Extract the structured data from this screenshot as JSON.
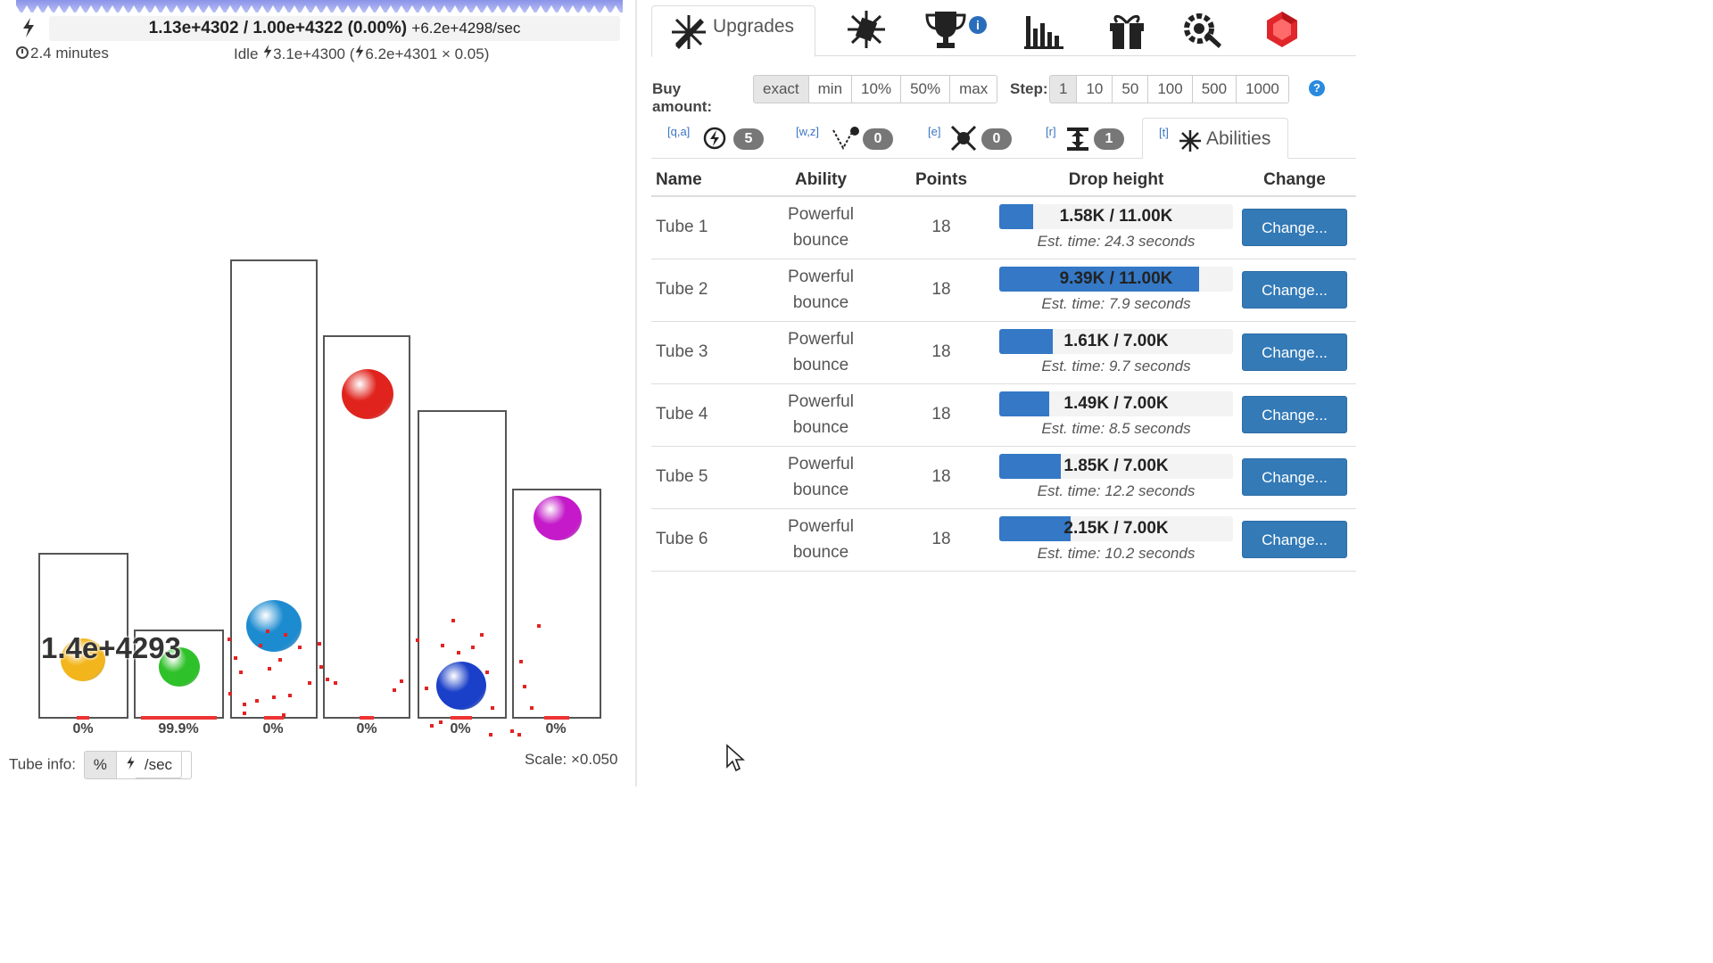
{
  "energy": {
    "value": "1.13e+4302 / 1.00e+4322 (0.00%)",
    "rate": "+6.2e+4298/sec",
    "elapsed": "2.4 minutes",
    "idle_label": "Idle",
    "idle_value": "3.1e+4300",
    "idle_detail": "6.2e+4301 × 0.05"
  },
  "field": {
    "big_number": "1.4e+4293",
    "tubes": [
      {
        "pct": "0%",
        "ball_color": "#f2b51c"
      },
      {
        "pct": "99.9%",
        "ball_color": "#2fc12a",
        "floor_fill": 0.999
      },
      {
        "pct": "0%",
        "ball_color": "#1d8bd0"
      },
      {
        "pct": "0%",
        "ball_color": "#e0231d"
      },
      {
        "pct": "0%",
        "ball_color": "#1a3fc8"
      },
      {
        "pct": "0%",
        "ball_color": "#c41ac9"
      }
    ],
    "tube_info_label": "Tube info:",
    "tube_info_options": [
      "%",
      "/sec"
    ],
    "tube_info_selected": "%",
    "scale": "Scale: ×0.050"
  },
  "tabs": {
    "upgrades": "Upgrades",
    "others": [
      "vortex-icon",
      "trophy-icon",
      "stats-icon",
      "gift-icon",
      "settings-icon",
      "gem-icon"
    ],
    "trophy_badge": "i"
  },
  "buy": {
    "label": "Buy amount:",
    "options": [
      "exact",
      "min",
      "10%",
      "50%",
      "max"
    ],
    "selected": "exact",
    "step_label": "Step:",
    "steps": [
      "1",
      "10",
      "50",
      "100",
      "500",
      "1000"
    ],
    "step_selected": "1",
    "help": "?"
  },
  "subtabs": [
    {
      "key": "[q,a]",
      "icon": "power-icon",
      "count": "5"
    },
    {
      "key": "[w,z]",
      "icon": "bounce-icon",
      "count": "0"
    },
    {
      "key": "[e]",
      "icon": "collide-icon",
      "count": "0"
    },
    {
      "key": "[r]",
      "icon": "height-icon",
      "count": "1"
    },
    {
      "key": "[t]",
      "icon": "abilities-icon",
      "label": "Abilities"
    }
  ],
  "table": {
    "headers": [
      "Name",
      "Ability",
      "Points",
      "Drop height",
      "Change"
    ],
    "rows": [
      {
        "name": "Tube 1",
        "ability": [
          "Powerful",
          "bounce"
        ],
        "points": "18",
        "drop": "1.58K / 11.00K",
        "fill": 0.1436,
        "est": "Est. time: 24.3 seconds",
        "button": "Change..."
      },
      {
        "name": "Tube 2",
        "ability": [
          "Powerful",
          "bounce"
        ],
        "points": "18",
        "drop": "9.39K / 11.00K",
        "fill": 0.8536,
        "est": "Est. time: 7.9 seconds",
        "button": "Change..."
      },
      {
        "name": "Tube 3",
        "ability": [
          "Powerful",
          "bounce"
        ],
        "points": "18",
        "drop": "1.61K / 7.00K",
        "fill": 0.23,
        "est": "Est. time: 9.7 seconds",
        "button": "Change..."
      },
      {
        "name": "Tube 4",
        "ability": [
          "Powerful",
          "bounce"
        ],
        "points": "18",
        "drop": "1.49K / 7.00K",
        "fill": 0.2129,
        "est": "Est. time: 8.5 seconds",
        "button": "Change..."
      },
      {
        "name": "Tube 5",
        "ability": [
          "Powerful",
          "bounce"
        ],
        "points": "18",
        "drop": "1.85K / 7.00K",
        "fill": 0.2643,
        "est": "Est. time: 12.2 seconds",
        "button": "Change..."
      },
      {
        "name": "Tube 6",
        "ability": [
          "Powerful",
          "bounce"
        ],
        "points": "18",
        "drop": "2.15K / 7.00K",
        "fill": 0.3071,
        "est": "Est. time: 10.2 seconds",
        "button": "Change..."
      }
    ]
  },
  "colors": {
    "accent": "#337ab7",
    "progress": "#3478c6",
    "particle": "#e22222"
  }
}
